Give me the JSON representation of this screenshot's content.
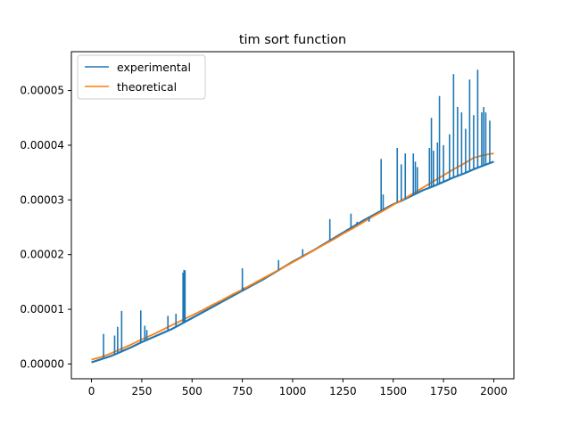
{
  "chart_data": {
    "type": "line",
    "title": "tim sort function",
    "xlabel": "",
    "ylabel": "",
    "xlim": [
      -100,
      2100
    ],
    "ylim": [
      -2.7e-06,
      5.71e-05
    ],
    "xticks": [
      0,
      250,
      500,
      750,
      1000,
      1250,
      1500,
      1750,
      2000
    ],
    "xtick_labels": [
      "0",
      "250",
      "500",
      "750",
      "1000",
      "1250",
      "1500",
      "1750",
      "2000"
    ],
    "yticks": [
      0,
      1e-05,
      2e-05,
      3e-05,
      4e-05,
      5e-05
    ],
    "ytick_labels": [
      "0.00000",
      "0.00001",
      "0.00002",
      "0.00003",
      "0.00004",
      "0.00005"
    ],
    "grid": false,
    "legend_position": "top-left",
    "series": [
      {
        "name": "experimental",
        "color": "#1f77b4",
        "x": [
          0,
          50,
          100,
          150,
          200,
          250,
          300,
          350,
          400,
          450,
          500,
          550,
          600,
          650,
          700,
          750,
          800,
          850,
          900,
          950,
          1000,
          1050,
          1100,
          1150,
          1200,
          1250,
          1300,
          1350,
          1400,
          1450,
          1500,
          1550,
          1600,
          1650,
          1700,
          1750,
          1800,
          1850,
          1900,
          1950,
          2000
        ],
        "y": [
          3e-07,
          9e-07,
          1.5e-06,
          2.3e-06,
          3.1e-06,
          4e-06,
          4.8e-06,
          5.6e-06,
          6.4e-06,
          7.4e-06,
          8.4e-06,
          9.4e-06,
          1.04e-05,
          1.14e-05,
          1.24e-05,
          1.34e-05,
          1.44e-05,
          1.54e-05,
          1.65e-05,
          1.76e-05,
          1.87e-05,
          1.97e-05,
          2.07e-05,
          2.18e-05,
          2.29e-05,
          2.4e-05,
          2.51e-05,
          2.62e-05,
          2.72e-05,
          2.82e-05,
          2.92e-05,
          3e-05,
          3.09e-05,
          3.18e-05,
          3.25e-05,
          3.33e-05,
          3.41e-05,
          3.48e-05,
          3.56e-05,
          3.63e-05,
          3.7e-05
        ]
      },
      {
        "name": "theoretical",
        "color": "#ff7f0e",
        "x": [
          0,
          50,
          100,
          150,
          200,
          250,
          300,
          350,
          400,
          450,
          500,
          550,
          600,
          650,
          700,
          750,
          800,
          850,
          900,
          950,
          1000,
          1050,
          1100,
          1150,
          1200,
          1250,
          1300,
          1350,
          1400,
          1450,
          1500,
          1550,
          1600,
          1650,
          1700,
          1750,
          1800,
          1850,
          1900,
          1950,
          2000
        ],
        "y": [
          8e-07,
          1.3e-06,
          2e-06,
          2.8e-06,
          3.6e-06,
          4.5e-06,
          5.3e-06,
          6.2e-06,
          7.1e-06,
          8e-06,
          8.9e-06,
          9.8e-06,
          1.08e-05,
          1.17e-05,
          1.27e-05,
          1.36e-05,
          1.46e-05,
          1.56e-05,
          1.66e-05,
          1.76e-05,
          1.86e-05,
          1.96e-05,
          2.07e-05,
          2.17e-05,
          2.27e-05,
          2.38e-05,
          2.48e-05,
          2.59e-05,
          2.7e-05,
          2.8e-05,
          2.91e-05,
          3.01e-05,
          3.12e-05,
          3.23e-05,
          3.34e-05,
          3.45e-05,
          3.56e-05,
          3.66e-05,
          3.77e-05,
          3.82e-05,
          3.85e-05
        ]
      }
    ],
    "spikes": {
      "series": "experimental",
      "x": [
        60,
        115,
        130,
        150,
        245,
        265,
        275,
        380,
        420,
        455,
        460,
        465,
        750,
        755,
        930,
        1050,
        1185,
        1200,
        1290,
        1320,
        1380,
        1440,
        1450,
        1520,
        1540,
        1560,
        1600,
        1610,
        1620,
        1680,
        1690,
        1700,
        1720,
        1730,
        1750,
        1780,
        1800,
        1820,
        1840,
        1860,
        1880,
        1900,
        1920,
        1940,
        1950,
        1960,
        1980
      ],
      "y": [
        5.5e-06,
        5.2e-06,
        6.8e-06,
        9.7e-06,
        9.8e-06,
        7e-06,
        6.2e-06,
        8.8e-06,
        9.2e-06,
        1.67e-05,
        1.72e-05,
        1.71e-05,
        1.75e-05,
        1.4e-05,
        1.9e-05,
        2.1e-05,
        2.65e-05,
        2.3e-05,
        2.75e-05,
        2.6e-05,
        2.6e-05,
        3.75e-05,
        3.1e-05,
        3.95e-05,
        3.65e-05,
        3.85e-05,
        3.85e-05,
        3.7e-05,
        3.6e-05,
        3.95e-05,
        4.5e-05,
        3.9e-05,
        4.05e-05,
        4.9e-05,
        4e-05,
        4.2e-05,
        5.3e-05,
        4.7e-05,
        4.6e-05,
        4.3e-05,
        5.2e-05,
        4.55e-05,
        5.38e-05,
        4.6e-05,
        4.7e-05,
        4.6e-05,
        4.45e-05
      ]
    }
  }
}
